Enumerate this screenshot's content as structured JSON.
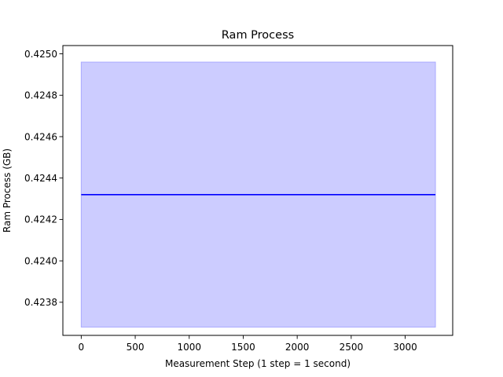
{
  "chart_data": {
    "type": "line",
    "title": "Ram Process",
    "xlabel": "Measurement Step (1 step = 1 second)",
    "ylabel": "Ram Process (GB)",
    "xlim": [
      -170,
      3440
    ],
    "ylim": [
      0.42364,
      0.42504
    ],
    "xticks": [
      0,
      500,
      1000,
      1500,
      2000,
      2500,
      3000
    ],
    "yticks": [
      0.4238,
      0.424,
      0.4242,
      0.4244,
      0.4246,
      0.4248,
      0.425
    ],
    "ytick_labels": [
      "0.4238",
      "0.4240",
      "0.4242",
      "0.4244",
      "0.4246",
      "0.4248",
      "0.4250"
    ],
    "grid": false,
    "series": [
      {
        "x": [
          0,
          3280
        ],
        "values": [
          0.42432,
          0.42432
        ],
        "color": "#0000ff"
      }
    ],
    "band": {
      "x": [
        0,
        3280
      ],
      "lower": 0.42368,
      "upper": 0.42496,
      "fill_color": "#ccccff",
      "edge_color": "#aaaaff"
    }
  }
}
